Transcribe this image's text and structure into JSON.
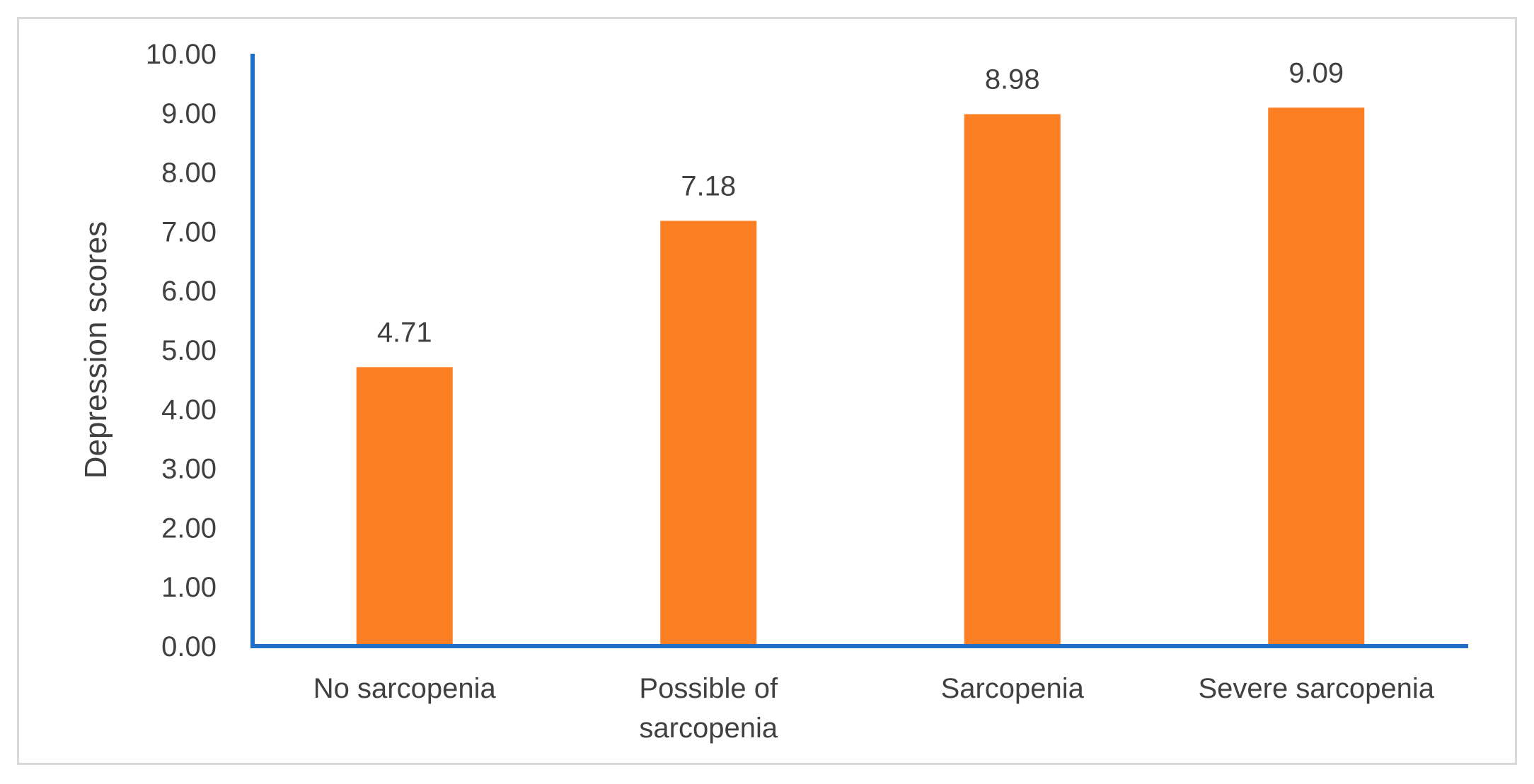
{
  "chart_data": {
    "type": "bar",
    "title": "",
    "xlabel": "",
    "ylabel": "Depression scores",
    "categories": [
      [
        "No sarcopenia"
      ],
      [
        "Possible of",
        "sarcopenia"
      ],
      [
        "Sarcopenia"
      ],
      [
        "Severe sarcopenia"
      ]
    ],
    "values": [
      4.71,
      7.18,
      8.98,
      9.09
    ],
    "data_labels": [
      "4.71",
      "7.18",
      "8.98",
      "9.09"
    ],
    "yticks": [
      "0.00",
      "1.00",
      "2.00",
      "3.00",
      "4.00",
      "5.00",
      "6.00",
      "7.00",
      "8.00",
      "9.00",
      "10.00"
    ],
    "ylim": [
      0,
      10
    ],
    "grid": false,
    "legend": "none",
    "colors": {
      "bar": "#fd7f24",
      "axis": "#1f6fc9",
      "text": "#404040",
      "frame": "#d9d9d9"
    }
  }
}
